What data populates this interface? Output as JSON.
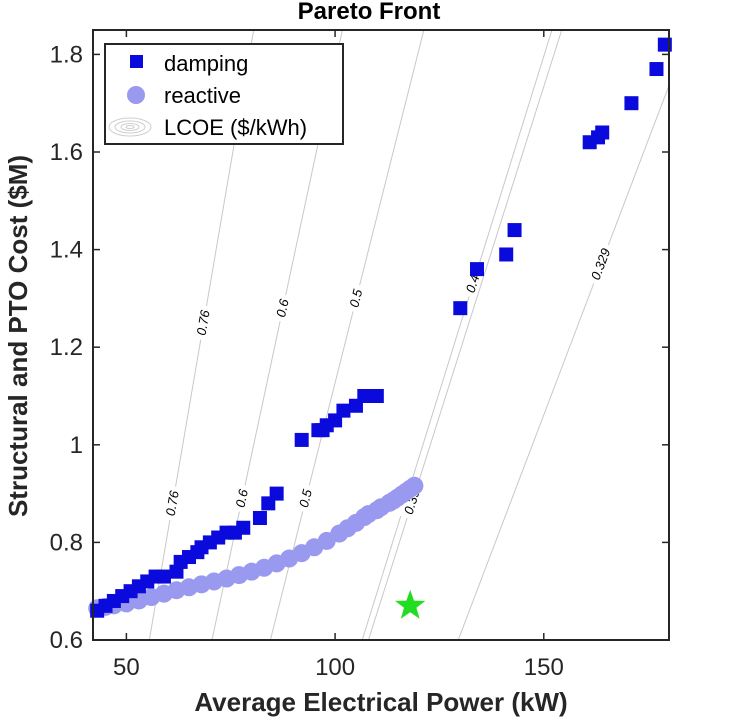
{
  "chart_data": {
    "type": "scatter",
    "title": "Pareto Front",
    "xlabel": "Average Electrical Power (kW)",
    "ylabel": "Structural and PTO Cost ($M)",
    "xlim": [
      42,
      180
    ],
    "ylim": [
      0.6,
      1.85
    ],
    "xticks": [
      50,
      100,
      150
    ],
    "yticks": [
      0.6,
      0.8,
      1,
      1.2,
      1.4,
      1.6,
      1.8
    ],
    "xtick_labels": [
      "50",
      "100",
      "150"
    ],
    "ytick_labels": [
      "0.6",
      "0.8",
      "1",
      "1.2",
      "1.4",
      "1.6",
      "1.8"
    ],
    "legend_position": "top-left",
    "legend": {
      "damping": "damping",
      "reactive": "reactive",
      "lcoe": "LCOE ($/kWh)"
    },
    "colors": {
      "damping": "#0a0adc",
      "reactive": "#9999f0",
      "star": "#22dd22",
      "contour": "#c8c8c8"
    },
    "series": [
      {
        "name": "damping",
        "marker": "square",
        "x": [
          43,
          45,
          47,
          49,
          51,
          53,
          55,
          57,
          59,
          62,
          63,
          65,
          67,
          68,
          70,
          72,
          74,
          76,
          78,
          82,
          84,
          86,
          92,
          96,
          97,
          98,
          100,
          102,
          105,
          107,
          109,
          110,
          130,
          134,
          141,
          143,
          161,
          163,
          164,
          171,
          177,
          179
        ],
        "y": [
          0.66,
          0.67,
          0.68,
          0.69,
          0.7,
          0.71,
          0.72,
          0.73,
          0.73,
          0.74,
          0.76,
          0.77,
          0.78,
          0.79,
          0.8,
          0.81,
          0.82,
          0.82,
          0.83,
          0.85,
          0.88,
          0.9,
          1.01,
          1.03,
          1.03,
          1.04,
          1.05,
          1.07,
          1.08,
          1.1,
          1.1,
          1.1,
          1.28,
          1.36,
          1.39,
          1.44,
          1.62,
          1.63,
          1.64,
          1.7,
          1.77,
          1.82
        ]
      },
      {
        "name": "reactive",
        "marker": "circle",
        "x": [
          43,
          45,
          47,
          50,
          53,
          56,
          59,
          62,
          65,
          68,
          71,
          74,
          77,
          80,
          83,
          86,
          89,
          92,
          95,
          98,
          101,
          103,
          105,
          107,
          108,
          110,
          111,
          113,
          114,
          115,
          116,
          117,
          118,
          119
        ],
        "y": [
          0.665,
          0.668,
          0.671,
          0.675,
          0.681,
          0.688,
          0.695,
          0.702,
          0.708,
          0.714,
          0.72,
          0.726,
          0.733,
          0.74,
          0.748,
          0.757,
          0.767,
          0.778,
          0.79,
          0.803,
          0.818,
          0.829,
          0.84,
          0.852,
          0.858,
          0.866,
          0.872,
          0.881,
          0.886,
          0.892,
          0.898,
          0.904,
          0.91,
          0.916
        ]
      }
    ],
    "optimum_marker": {
      "marker": "star",
      "x": 118,
      "y": 0.67
    },
    "lcoe_contours": [
      {
        "label": "0.76",
        "x_at_min": 55.5,
        "slope_per_kw": 0.05,
        "labels_at_y": [
          0.88,
          1.25
        ]
      },
      {
        "label": "0.6",
        "x_at_min": 70.5,
        "slope_per_kw": 0.04,
        "labels_at_y": [
          0.89,
          1.28
        ]
      },
      {
        "label": "0.5",
        "x_at_min": 84.5,
        "slope_per_kw": 0.034,
        "labels_at_y": [
          0.89,
          1.3
        ]
      },
      {
        "label": "0.4",
        "x_at_min": 106.5,
        "slope_per_kw": 0.0275,
        "labels_at_y": [
          0.9,
          1.33
        ]
      },
      {
        "label": "0.394",
        "x_at_min": 108,
        "slope_per_kw": 0.027,
        "labels_at_y": [
          0.89
        ]
      },
      {
        "label": "0.329",
        "x_at_min": 129.5,
        "slope_per_kw": 0.0225,
        "labels_at_y": [
          1.37
        ]
      }
    ]
  }
}
